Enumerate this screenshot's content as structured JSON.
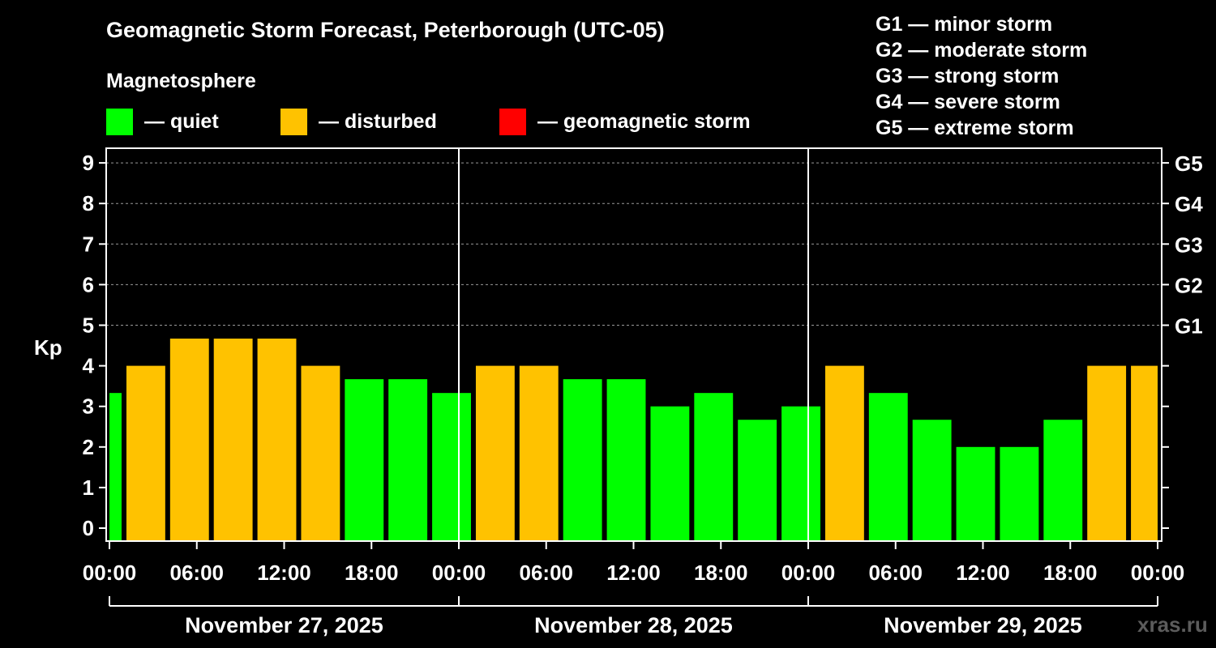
{
  "colors": {
    "quiet": "#00ff00",
    "disturbed": "#ffc200",
    "storm": "#ff0000",
    "background": "#000000",
    "axis": "#ffffff"
  },
  "chart_data": {
    "type": "bar",
    "title": "Geomagnetic Storm Forecast, Peterborough (UTC-05)",
    "subtitle": "Magnetosphere",
    "ylabel": "Kp",
    "ylim": [
      -0.3,
      9.4
    ],
    "yticks": [
      0,
      1,
      2,
      3,
      4,
      5,
      6,
      7,
      8,
      9
    ],
    "ytick_labels": [
      "0",
      "1",
      "2",
      "3",
      "4",
      "5",
      "6",
      "7",
      "8",
      "9"
    ],
    "right_ticks": [
      {
        "kp": 5,
        "label": "G1"
      },
      {
        "kp": 6,
        "label": "G2"
      },
      {
        "kp": 7,
        "label": "G3"
      },
      {
        "kp": 8,
        "label": "G4"
      },
      {
        "kp": 9,
        "label": "G5"
      }
    ],
    "xlim_hours": [
      0,
      72
    ],
    "xticks": [
      {
        "hour": 0,
        "label": "00:00"
      },
      {
        "hour": 6,
        "label": "06:00"
      },
      {
        "hour": 12,
        "label": "12:00"
      },
      {
        "hour": 18,
        "label": "18:00"
      },
      {
        "hour": 24,
        "label": "00:00"
      },
      {
        "hour": 30,
        "label": "06:00"
      },
      {
        "hour": 36,
        "label": "12:00"
      },
      {
        "hour": 42,
        "label": "18:00"
      },
      {
        "hour": 48,
        "label": "00:00"
      },
      {
        "hour": 54,
        "label": "06:00"
      },
      {
        "hour": 60,
        "label": "12:00"
      },
      {
        "hour": 66,
        "label": "18:00"
      },
      {
        "hour": 72,
        "label": "00:00"
      }
    ],
    "days": [
      {
        "start": 0,
        "end": 24,
        "label": "November 27, 2025"
      },
      {
        "start": 24,
        "end": 48,
        "label": "November 28, 2025"
      },
      {
        "start": 48,
        "end": 72,
        "label": "November 29, 2025"
      }
    ],
    "series": [
      {
        "name": "Kp",
        "bars": [
          {
            "start": 0,
            "end": 1,
            "kp": 3.33,
            "state": "quiet"
          },
          {
            "start": 1,
            "end": 4,
            "kp": 4.0,
            "state": "disturbed"
          },
          {
            "start": 4,
            "end": 7,
            "kp": 4.67,
            "state": "disturbed"
          },
          {
            "start": 7,
            "end": 10,
            "kp": 4.67,
            "state": "disturbed"
          },
          {
            "start": 10,
            "end": 13,
            "kp": 4.67,
            "state": "disturbed"
          },
          {
            "start": 13,
            "end": 16,
            "kp": 4.0,
            "state": "disturbed"
          },
          {
            "start": 16,
            "end": 19,
            "kp": 3.67,
            "state": "quiet"
          },
          {
            "start": 19,
            "end": 22,
            "kp": 3.67,
            "state": "quiet"
          },
          {
            "start": 22,
            "end": 25,
            "kp": 3.33,
            "state": "quiet"
          },
          {
            "start": 25,
            "end": 28,
            "kp": 4.0,
            "state": "disturbed"
          },
          {
            "start": 28,
            "end": 31,
            "kp": 4.0,
            "state": "disturbed"
          },
          {
            "start": 31,
            "end": 34,
            "kp": 3.67,
            "state": "quiet"
          },
          {
            "start": 34,
            "end": 37,
            "kp": 3.67,
            "state": "quiet"
          },
          {
            "start": 37,
            "end": 40,
            "kp": 3.0,
            "state": "quiet"
          },
          {
            "start": 40,
            "end": 43,
            "kp": 3.33,
            "state": "quiet"
          },
          {
            "start": 43,
            "end": 46,
            "kp": 2.67,
            "state": "quiet"
          },
          {
            "start": 46,
            "end": 49,
            "kp": 3.0,
            "state": "quiet"
          },
          {
            "start": 49,
            "end": 52,
            "kp": 4.0,
            "state": "disturbed"
          },
          {
            "start": 52,
            "end": 55,
            "kp": 3.33,
            "state": "quiet"
          },
          {
            "start": 55,
            "end": 58,
            "kp": 2.67,
            "state": "quiet"
          },
          {
            "start": 58,
            "end": 61,
            "kp": 2.0,
            "state": "quiet"
          },
          {
            "start": 61,
            "end": 64,
            "kp": 2.0,
            "state": "quiet"
          },
          {
            "start": 64,
            "end": 67,
            "kp": 2.67,
            "state": "quiet"
          },
          {
            "start": 67,
            "end": 70,
            "kp": 4.0,
            "state": "disturbed"
          },
          {
            "start": 70,
            "end": 72,
            "kp": 4.0,
            "state": "disturbed"
          }
        ]
      }
    ],
    "grid": true
  },
  "legend": {
    "quiet": "— quiet",
    "disturbed": "— disturbed",
    "storm": "— geomagnetic storm"
  },
  "storm_scale": [
    "G1 — minor storm",
    "G2 — moderate storm",
    "G3 — strong storm",
    "G4 — severe storm",
    "G5 — extreme storm"
  ],
  "watermark": "xras.ru"
}
